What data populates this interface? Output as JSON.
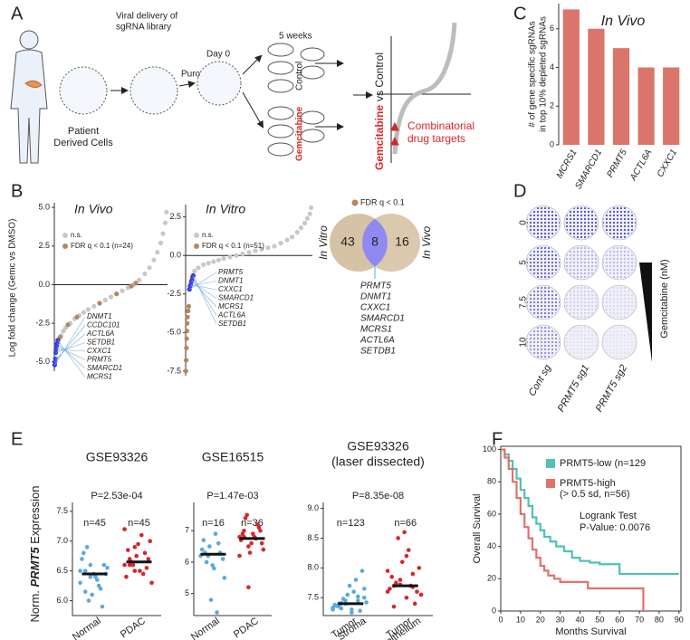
{
  "panels": {
    "labels": [
      "A",
      "B",
      "C",
      "D",
      "E",
      "F"
    ],
    "a": {
      "viral": [
        "Viral delivery of",
        "sgRNA library"
      ],
      "puro": "Puro",
      "day0": "Day 0",
      "weeks": "5 weeks",
      "control": "Control",
      "gemcitabine": "Gemcitabine",
      "cells": [
        "Patient",
        "Derived Cells"
      ],
      "comparison": [
        "Gemcitabine",
        "vs Control"
      ],
      "targets": [
        "Combinatorial",
        "drug targets"
      ]
    },
    "b_ylabel": "Log fold change (Gemc vs DMSO)",
    "venn": {
      "legend": "FDR q < 0.1",
      "left": 43,
      "overlap": 8,
      "right": 16,
      "left_label": "In Vitro",
      "right_label": "In Vivo",
      "genes": [
        "PRMT5",
        "DNMT1",
        "CXXC1",
        "SMARCD1",
        "MCRS1",
        "ACTL6A",
        "SETDB1"
      ]
    },
    "d": {
      "doses": [
        0,
        5,
        7.5,
        10
      ],
      "samples": [
        "Cont sg",
        "PRMT5 sg1",
        "PRMT5 sg2"
      ],
      "drug": "Gemcitabine (nM)"
    },
    "e_ylabel": [
      "Norm. ",
      "PRMT5",
      " Expression"
    ]
  },
  "chart_data": [
    {
      "type": "bar",
      "title": "In Vivo",
      "ylabel": [
        "# of gene specific sgRNAs",
        "in top 10% depleted sgRNAs"
      ],
      "categories": [
        "MCRS1",
        "SMARCD1",
        "PRMT5",
        "ACTL6A",
        "CXXC1"
      ],
      "values": [
        7,
        6,
        5,
        4,
        4
      ],
      "color": "#d9756a",
      "ylim": [
        0,
        7.3
      ],
      "yticks": [
        0,
        2,
        4,
        6
      ]
    },
    {
      "type": "scatter",
      "title": "In Vivo",
      "xlim": [
        0,
        100
      ],
      "ylim": [
        -5.6,
        5.3
      ],
      "yticks": [
        {
          "value": 5,
          "label": "5.0"
        },
        {
          "value": 2.5,
          "label": "2.5"
        },
        {
          "value": 0,
          "label": "0.0"
        },
        {
          "value": -2.5,
          "label": "-2.5"
        },
        {
          "value": -5,
          "label": "-5.0"
        }
      ],
      "series": [
        {
          "name": "n.s.",
          "color": "#c8c8c8",
          "x": [
            2,
            4,
            6,
            8,
            10,
            14,
            18,
            22,
            26,
            30,
            35,
            40,
            45,
            50,
            55,
            60,
            65,
            70,
            75,
            80,
            84,
            88,
            91,
            94,
            96,
            98,
            99
          ],
          "values": [
            -4.0,
            -3.6,
            -3.3,
            -3.0,
            -2.8,
            -2.5,
            -2.2,
            -2.0,
            -1.8,
            -1.6,
            -1.4,
            -1.2,
            -1.0,
            -0.8,
            -0.6,
            -0.4,
            -0.2,
            0.0,
            0.3,
            0.7,
            1.1,
            1.6,
            2.1,
            2.7,
            3.3,
            4.0,
            4.7
          ]
        },
        {
          "name": "FDR q < 0.1 (n=24)",
          "color": "#b5875a",
          "x": [
            5,
            12,
            20,
            40,
            55,
            68,
            72
          ],
          "values": [
            -3.4,
            -2.6,
            -2.1,
            -1.2,
            -0.6,
            -0.1,
            0.1
          ]
        },
        {
          "color": "#3b3bdc",
          "x": [
            0.3,
            0.6,
            0.9,
            1.2,
            1.5,
            2,
            2.5,
            3
          ],
          "values": [
            -5.2,
            -5.0,
            -4.8,
            -4.4,
            -4.2,
            -4.0,
            -3.8,
            -3.6
          ]
        }
      ],
      "gene_labels": [
        "DNMT1",
        "CCDC101",
        "ACTL6A",
        "SETDB1",
        "CXXC1",
        "PRMT5",
        "SMARCD1",
        "MCRS1"
      ]
    },
    {
      "type": "scatter",
      "title": "In Vitro",
      "xlim": [
        0,
        100
      ],
      "ylim": [
        -7.8,
        3.3
      ],
      "yticks": [
        {
          "value": 2.5,
          "label": "2.5"
        },
        {
          "value": 0,
          "label": "0.0"
        },
        {
          "value": -2.5,
          "label": "-2.5"
        },
        {
          "value": -5,
          "label": "-5.0"
        },
        {
          "value": -7.5,
          "label": "-7.5"
        }
      ],
      "series": [
        {
          "name": "n.s.",
          "color": "#c8c8c8",
          "x": [
            7,
            10,
            14,
            18,
            22,
            26,
            30,
            35,
            40,
            45,
            50,
            55,
            60,
            65,
            70,
            75,
            80,
            84,
            88,
            91,
            94,
            96,
            98,
            99
          ],
          "values": [
            -1.0,
            -0.8,
            -0.6,
            -0.5,
            -0.4,
            -0.3,
            -0.2,
            -0.1,
            0.0,
            0.1,
            0.2,
            0.3,
            0.4,
            0.5,
            0.6,
            0.8,
            1.0,
            1.2,
            1.5,
            1.8,
            2.1,
            2.4,
            2.7,
            3.1
          ]
        },
        {
          "name": "FDR q < 0.1 (n=51)",
          "color": "#b5875a",
          "x": [
            0.2,
            0.4,
            0.6,
            0.8,
            1,
            1.2,
            1.5,
            2,
            2.5
          ],
          "values": [
            -7.5,
            -6.8,
            -6.0,
            -5.4,
            -4.9,
            -4.4,
            -4.0,
            -3.6,
            -3.3
          ]
        },
        {
          "color": "#3b3bdc",
          "x": [
            3,
            3.5,
            4,
            4.5,
            5,
            5.5,
            6
          ],
          "values": [
            -2.2,
            -2.0,
            -1.9,
            -1.7,
            -1.6,
            -1.4,
            -1.3
          ]
        }
      ],
      "gene_labels": [
        "PRMT5",
        "DNMT1",
        "CXXC1",
        "SMARCD1",
        "MCRS1",
        "ACTL6A",
        "SETDB1"
      ]
    },
    {
      "type": "strip",
      "title": [
        "GSE93326"
      ],
      "pvalue": "P=2.53e-04",
      "annotations": [
        "n=45",
        "n=45"
      ],
      "categories": [
        [
          "Normal"
        ],
        [
          "PDAC"
        ]
      ],
      "ylim": [
        5.75,
        7.65
      ],
      "yticks": [
        {
          "value": 6,
          "label": "6.0"
        },
        6.5,
        {
          "value": 7,
          "label": "7.0"
        },
        7.5
      ],
      "medians": [
        6.45,
        6.65
      ],
      "series": [
        {
          "color": "#5aa9e0",
          "values": [
            6.3,
            6.5,
            6.6,
            6.4,
            6.2,
            6.45,
            6.7,
            6.9,
            6.1,
            6.35,
            5.9,
            6.55,
            6.8,
            6.0,
            6.45,
            6.25,
            6.6,
            6.5,
            6.15,
            6.4
          ]
        },
        {
          "color": "#d6262b",
          "values": [
            6.6,
            6.7,
            6.9,
            6.5,
            6.8,
            7.0,
            6.4,
            6.65,
            6.75,
            7.1,
            6.55,
            6.3,
            6.85,
            6.6,
            6.95,
            6.45,
            6.7,
            7.2,
            6.6,
            6.5
          ]
        }
      ]
    },
    {
      "type": "strip",
      "title": [
        "GSE16515"
      ],
      "pvalue": "P=1.47e-03",
      "annotations": [
        "n=16",
        "n=36"
      ],
      "categories": [
        [
          "Normal"
        ],
        [
          "PDAC"
        ]
      ],
      "ylim": [
        4.3,
        7.9
      ],
      "yticks": [
        5,
        6,
        7
      ],
      "medians": [
        6.25,
        6.75
      ],
      "series": [
        {
          "color": "#5aa9e0",
          "values": [
            6.2,
            6.3,
            6.5,
            5.8,
            6.6,
            6.1,
            6.4,
            6.0,
            4.8,
            6.9,
            6.3,
            5.5,
            6.7,
            6.2,
            5.9,
            4.4
          ]
        },
        {
          "color": "#d6262b",
          "values": [
            6.8,
            7.0,
            6.5,
            6.9,
            7.2,
            6.6,
            6.7,
            7.4,
            6.3,
            6.8,
            7.1,
            6.4,
            6.9,
            7.5,
            6.6,
            6.75,
            7.0,
            6.2,
            6.8,
            5.2
          ]
        }
      ]
    },
    {
      "type": "strip",
      "title": [
        "GSE93326",
        "(laser dissected)"
      ],
      "pvalue": "P=8.35e-08",
      "annotations": [
        "n=123",
        "n=66"
      ],
      "categories": [
        [
          "Tumor",
          "Stroma"
        ],
        [
          "Tumor",
          "Epithelium"
        ]
      ],
      "ylim": [
        7.2,
        9.1
      ],
      "yticks": [
        7.5,
        {
          "value": 8,
          "label": "8.0"
        },
        8.5,
        {
          "value": 9,
          "label": "9.0"
        }
      ],
      "medians": [
        7.4,
        7.7
      ],
      "series": [
        {
          "color": "#5aa9e0",
          "values": [
            7.3,
            7.35,
            7.4,
            7.25,
            7.45,
            7.5,
            7.38,
            7.32,
            7.55,
            7.6,
            7.28,
            7.42,
            7.36,
            7.48,
            7.7,
            7.8,
            7.95,
            7.33,
            7.4,
            7.45,
            7.3,
            7.52,
            7.65,
            7.37,
            7.41
          ]
        },
        {
          "color": "#d6262b",
          "values": [
            7.6,
            7.7,
            7.8,
            7.5,
            7.9,
            8.0,
            7.65,
            7.75,
            8.1,
            8.3,
            7.4,
            7.55,
            7.85,
            8.5,
            8.6,
            7.7,
            7.6,
            7.95,
            7.35,
            7.72,
            8.2,
            7.68
          ]
        }
      ]
    },
    {
      "type": "survival",
      "xlabel": "Months Survival",
      "ylabel": "Overall Survival",
      "xlim": [
        0,
        91
      ],
      "ylim": [
        0,
        102
      ],
      "xticks": [
        0,
        10,
        20,
        30,
        40,
        50,
        60,
        70,
        80,
        90
      ],
      "yticks": [
        0,
        20,
        40,
        60,
        80,
        100
      ],
      "annotations": [
        "Logrank Test",
        "P-Value: 0.0076"
      ],
      "series": [
        {
          "name": "PRMT5-low (n=129",
          "color": "#4fc1b5",
          "x": [
            0,
            2,
            4,
            6,
            8,
            10,
            12,
            14,
            16,
            18,
            20,
            22,
            25,
            28,
            32,
            36,
            40,
            45,
            50,
            55,
            60,
            70,
            80,
            90
          ],
          "values": [
            100,
            97,
            93,
            88,
            82,
            75,
            70,
            65,
            58,
            54,
            50,
            46,
            43,
            40,
            37,
            33,
            31,
            30,
            29,
            29,
            23,
            23,
            23,
            23
          ]
        },
        {
          "name": "PRMT5-high",
          "note": "(> 0.5 sd, n=56)",
          "color": "#e0726b",
          "x": [
            0,
            2,
            4,
            6,
            8,
            10,
            12,
            14,
            16,
            18,
            20,
            22,
            24,
            27,
            30,
            35,
            44,
            46,
            60,
            71,
            72
          ],
          "values": [
            100,
            95,
            88,
            80,
            70,
            60,
            52,
            45,
            38,
            33,
            28,
            25,
            22,
            20,
            18,
            18,
            14,
            14,
            14,
            14,
            0
          ]
        }
      ]
    }
  ]
}
